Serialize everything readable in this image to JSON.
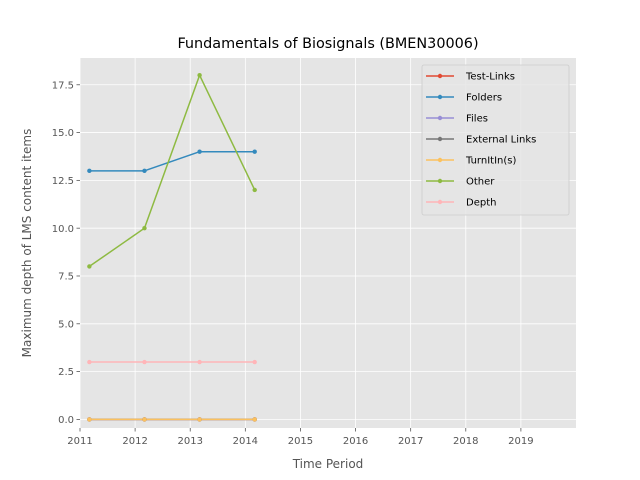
{
  "chart_data": {
    "type": "line",
    "title": "Fundamentals of Biosignals (BMEN30006)",
    "xlabel": "Time Period",
    "ylabel": "Maximum depth of LMS content items",
    "xlim": [
      2011,
      2020
    ],
    "ylim": [
      -0.45,
      18.9
    ],
    "x_ticks": [
      2011,
      2012,
      2013,
      2014,
      2015,
      2016,
      2017,
      2018,
      2019
    ],
    "x_tick_labels": [
      "2011",
      "2012",
      "2013",
      "2014",
      "2015",
      "2016",
      "2017",
      "2018",
      "2019"
    ],
    "y_ticks": [
      0,
      2.5,
      5,
      7.5,
      10,
      12.5,
      15,
      17.5
    ],
    "y_tick_labels": [
      "0.0",
      "2.5",
      "5.0",
      "7.5",
      "10.0",
      "12.5",
      "15.0",
      "17.5"
    ],
    "x": [
      2011.17,
      2012.17,
      2013.17,
      2014.17
    ],
    "grid": true,
    "legend_position": "top-right",
    "series": [
      {
        "name": "Test-Links",
        "color": "#E24A33",
        "values": [
          0,
          0,
          0,
          0
        ]
      },
      {
        "name": "Folders",
        "color": "#348ABD",
        "values": [
          13,
          13,
          14,
          14
        ]
      },
      {
        "name": "Files",
        "color": "#988ED5",
        "values": [
          0,
          0,
          0,
          0
        ]
      },
      {
        "name": "External Links",
        "color": "#777777",
        "values": [
          0,
          0,
          0,
          0
        ]
      },
      {
        "name": "TurnItIn(s)",
        "color": "#FBC15E",
        "values": [
          0,
          0,
          0,
          0
        ]
      },
      {
        "name": "Other",
        "color": "#8EBA42",
        "values": [
          8,
          10,
          18,
          12
        ]
      },
      {
        "name": "Depth",
        "color": "#FFB5B8",
        "values": [
          3,
          3,
          3,
          3
        ]
      }
    ]
  }
}
